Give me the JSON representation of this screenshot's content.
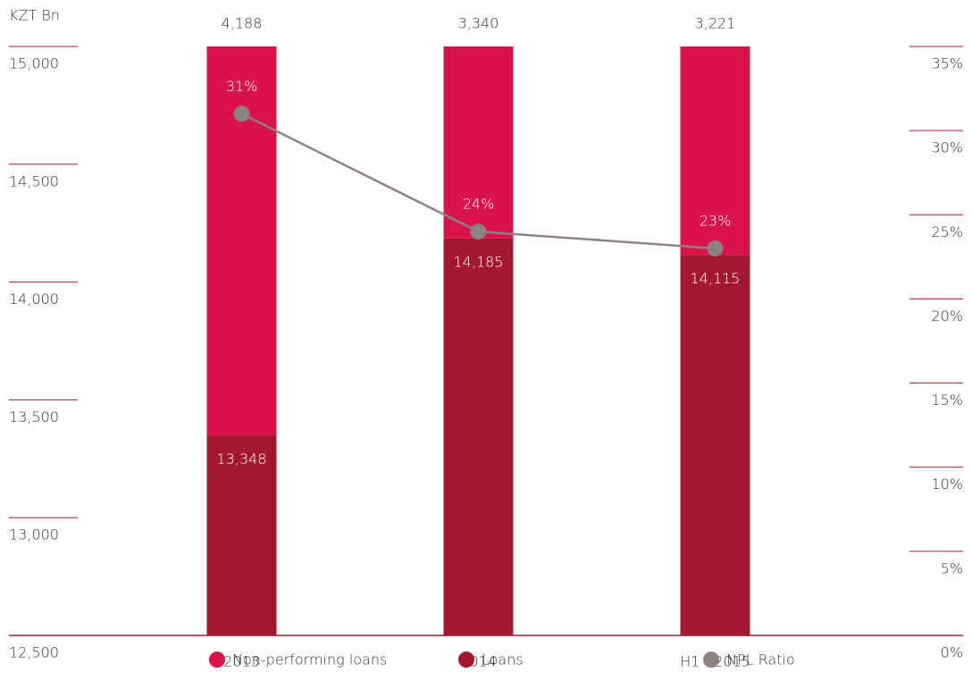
{
  "chart_data": {
    "type": "bar",
    "y_axis_label": "KZT Bn",
    "categories": [
      "2013",
      "2014",
      "H1 - 2015"
    ],
    "series": [
      {
        "name": "Non-performing loans",
        "color": "#d81448",
        "values": [
          4188,
          3340,
          3221
        ],
        "value_labels": [
          "4,188",
          "3,340",
          "3,221"
        ]
      },
      {
        "name": "Loans",
        "color": "#a31830",
        "values": [
          13348,
          14185,
          14115
        ],
        "value_labels": [
          "13,348",
          "14,185",
          "14,115"
        ]
      },
      {
        "name": "NPL Ratio",
        "color": "#8c8381",
        "type": "line",
        "axis": "y2",
        "values": [
          31,
          24,
          23
        ],
        "value_labels": [
          "31%",
          "24%",
          "23%"
        ]
      }
    ],
    "ylim": [
      12500,
      15000
    ],
    "yticks": [
      {
        "value": 12500,
        "label": "12,500"
      },
      {
        "value": 13000,
        "label": "13,000"
      },
      {
        "value": 13500,
        "label": "13,500"
      },
      {
        "value": 14000,
        "label": "14,000"
      },
      {
        "value": 14500,
        "label": "14,500"
      },
      {
        "value": 15000,
        "label": "15,000"
      }
    ],
    "y2lim": [
      0,
      35
    ],
    "y2ticks": [
      {
        "value": 0,
        "label": "0%"
      },
      {
        "value": 5,
        "label": "5%"
      },
      {
        "value": 10,
        "label": "10%"
      },
      {
        "value": 15,
        "label": "15%"
      },
      {
        "value": 20,
        "label": "20%"
      },
      {
        "value": 25,
        "label": "25%"
      },
      {
        "value": 30,
        "label": "30%"
      },
      {
        "value": 35,
        "label": "35%"
      }
    ],
    "legend": "bottom"
  }
}
